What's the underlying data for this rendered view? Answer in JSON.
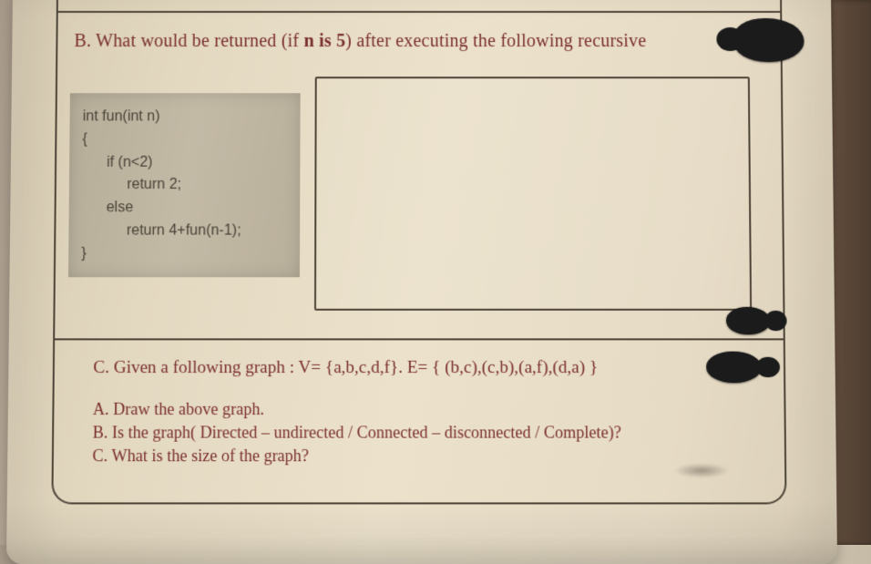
{
  "questionB": {
    "prompt_prefix": "B. What would be returned (if ",
    "prompt_bold": "n is 5",
    "prompt_suffix": ") after executing the following recursive",
    "code": "int fun(int n)\n{\n      if (n<2)\n           return 2;\n      else\n           return 4+fun(n-1);\n}"
  },
  "questionC": {
    "main_line": "C. Given a following graph :   V= {a,b,c,d,f}.   E= { (b,c),(c,b),(a,f),(d,a) }",
    "sub_a": "A. Draw the above graph.",
    "sub_b": "B. Is the graph( Directed – undirected  / Connected – disconnected  / Complete)?",
    "sub_c": "C. What is the size of the graph?"
  },
  "colors": {
    "ink": "#7a2f2f",
    "border": "#4d4437",
    "code_bg": "#bcb39f"
  }
}
